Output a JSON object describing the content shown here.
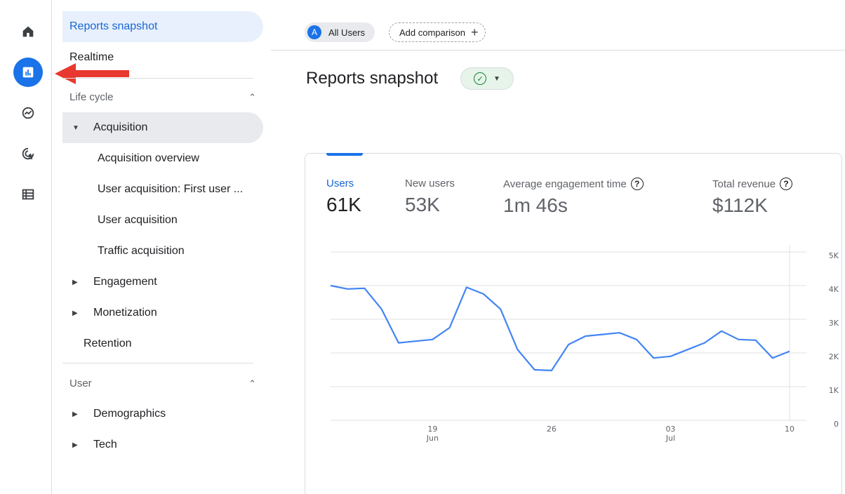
{
  "rail": {
    "items": [
      {
        "icon": "home-icon"
      },
      {
        "icon": "reports-icon",
        "active": true
      },
      {
        "icon": "explore-icon"
      },
      {
        "icon": "advertising-icon"
      },
      {
        "icon": "configure-icon"
      }
    ]
  },
  "sidebar": {
    "reports_snapshot": "Reports snapshot",
    "realtime": "Realtime",
    "lifecycle_section": "Life cycle",
    "acquisition": "Acquisition",
    "acquisition_overview": "Acquisition overview",
    "user_acquisition_first": "User acquisition: First user ...",
    "user_acquisition": "User acquisition",
    "traffic_acquisition": "Traffic acquisition",
    "engagement": "Engagement",
    "monetization": "Monetization",
    "retention": "Retention",
    "user_section": "User",
    "demographics": "Demographics",
    "tech": "Tech"
  },
  "topbar": {
    "all_users_avatar": "A",
    "all_users": "All Users",
    "add_comparison": "Add comparison"
  },
  "page": {
    "title": "Reports snapshot"
  },
  "metrics": [
    {
      "label": "Users",
      "value": "61K"
    },
    {
      "label": "New users",
      "value": "53K"
    },
    {
      "label": "Average engagement time",
      "value": "1m 46s"
    },
    {
      "label": "Total revenue",
      "value": "$112K"
    }
  ],
  "colors": {
    "accent": "#1a73e8",
    "line": "#4285f4",
    "annotation_arrow": "#e8382f"
  },
  "chart_data": {
    "type": "line",
    "series": [
      {
        "values": [
          4000,
          3900,
          3920,
          3300,
          2300,
          2350,
          2400,
          2750,
          3950,
          3750,
          3300,
          2100,
          1500,
          1480,
          2250,
          2500,
          2550,
          2600,
          2400,
          1850,
          1900,
          2100,
          2300,
          2650,
          2400,
          2380,
          1850,
          2050
        ]
      }
    ],
    "x_ticks": [
      {
        "index": 6,
        "day": "19",
        "month": "Jun"
      },
      {
        "index": 13,
        "day": "26",
        "month": ""
      },
      {
        "index": 20,
        "day": "03",
        "month": "Jul"
      },
      {
        "index": 27,
        "day": "10",
        "month": ""
      }
    ],
    "y_ticks": [
      "0",
      "1K",
      "2K",
      "3K",
      "4K",
      "5K"
    ],
    "ylim": [
      0,
      5000
    ],
    "grid": true
  }
}
